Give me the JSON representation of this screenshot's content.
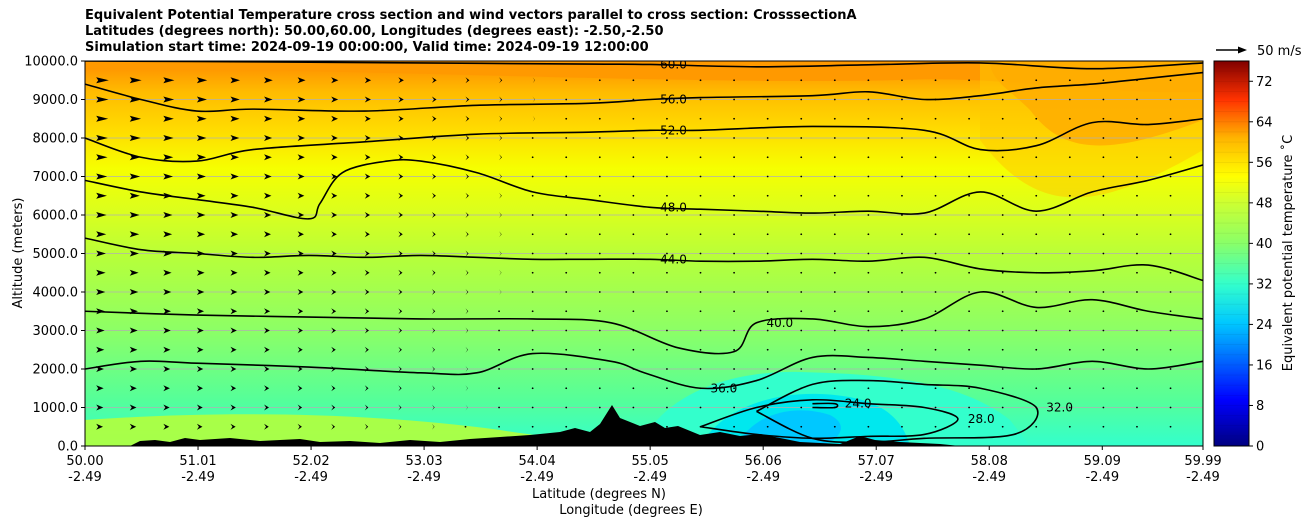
{
  "chart_data": {
    "type": "filled-contour",
    "title_lines": [
      "Equivalent Potential Temperature cross section and wind vectors parallel to cross section: CrosssectionA",
      "Latitudes (degrees north): 50.00,60.00, Longitudes (degrees east): -2.50,-2.50",
      "Simulation start time: 2024-09-19 00:00:00, Valid time: 2024-09-19 12:00:00"
    ],
    "ylabel": "Altitude (meters)",
    "xlabel_lines": [
      "Latitude (degrees N)",
      "Longitude (degrees E)"
    ],
    "ylim": [
      0,
      10000
    ],
    "yticks": [
      0,
      1000,
      2000,
      3000,
      4000,
      5000,
      6000,
      7000,
      8000,
      9000,
      10000
    ],
    "ytick_labels": [
      "0.0",
      "1000.0",
      "2000.0",
      "3000.0",
      "4000.0",
      "5000.0",
      "6000.0",
      "7000.0",
      "8000.0",
      "9000.0",
      "10000.0"
    ],
    "xlim": [
      50.0,
      59.99
    ],
    "xticks": [
      {
        "lat": "50.00",
        "lon": "-2.49"
      },
      {
        "lat": "51.01",
        "lon": "-2.49"
      },
      {
        "lat": "52.02",
        "lon": "-2.49"
      },
      {
        "lat": "53.03",
        "lon": "-2.49"
      },
      {
        "lat": "54.04",
        "lon": "-2.49"
      },
      {
        "lat": "55.05",
        "lon": "-2.49"
      },
      {
        "lat": "56.06",
        "lon": "-2.49"
      },
      {
        "lat": "57.07",
        "lon": "-2.49"
      },
      {
        "lat": "58.08",
        "lon": "-2.49"
      },
      {
        "lat": "59.09",
        "lon": "-2.49"
      },
      {
        "lat": "59.99",
        "lon": "-2.49"
      }
    ],
    "colorbar": {
      "label": "Equivalent potential temperature ˚C",
      "range": [
        0,
        76
      ],
      "ticks": [
        "0",
        "8",
        "16",
        "24",
        "32",
        "40",
        "48",
        "56",
        "64",
        "72"
      ]
    },
    "quiver_key": "50 m/s",
    "grid": "horizontal",
    "contour_lines": [
      {
        "level": 60,
        "label": "60.0",
        "x": [
          50.0,
          51.5,
          53.0,
          54.5,
          55.05,
          56.0,
          57.0,
          58.0,
          59.0,
          59.99
        ],
        "y": [
          10000,
          9980,
          9950,
          9920,
          9910,
          9850,
          9900,
          9950,
          9800,
          9950
        ]
      },
      {
        "level": 56,
        "label": "56.0",
        "x": [
          50.0,
          50.5,
          51.0,
          51.5,
          52.5,
          53.5,
          54.5,
          55.05,
          55.5,
          56.5,
          57.0,
          57.5,
          58.0,
          58.5,
          59.0,
          59.5,
          59.99
        ],
        "y": [
          9400,
          9000,
          8700,
          8750,
          8700,
          8850,
          8900,
          9000,
          9050,
          9100,
          9200,
          9000,
          9100,
          9300,
          9400,
          9550,
          9700
        ]
      },
      {
        "level": 52,
        "label": "52.0",
        "x": [
          50.0,
          50.5,
          51.0,
          51.5,
          52.5,
          53.5,
          54.5,
          55.05,
          55.5,
          56.5,
          57.5,
          58.0,
          58.5,
          59.0,
          59.5,
          59.99
        ],
        "y": [
          8000,
          7500,
          7400,
          7700,
          7900,
          8100,
          8150,
          8200,
          8200,
          8300,
          8200,
          7700,
          7800,
          8400,
          8350,
          8500
        ]
      },
      {
        "level": 48,
        "label": "48.0",
        "x": [
          50.0,
          50.5,
          51.0,
          51.5,
          52.0,
          52.1,
          52.3,
          52.7,
          53.0,
          53.5,
          54.0,
          54.5,
          55.05,
          55.5,
          56.0,
          56.5,
          57.0,
          57.5,
          58.0,
          58.5,
          59.0,
          59.5,
          59.99
        ],
        "y": [
          6900,
          6600,
          6400,
          6200,
          5900,
          6300,
          7100,
          7400,
          7400,
          7100,
          6600,
          6400,
          6200,
          6150,
          6100,
          6050,
          6100,
          6050,
          6600,
          6100,
          6600,
          6900,
          7300
        ]
      },
      {
        "level": 44,
        "label": "44.0",
        "x": [
          50.0,
          50.5,
          51.0,
          51.5,
          52.0,
          52.5,
          53.0,
          53.5,
          54.0,
          54.5,
          55.05,
          55.5,
          56.0,
          56.5,
          57.0,
          57.5,
          58.0,
          58.5,
          59.0,
          59.5,
          59.99
        ],
        "y": [
          5400,
          5100,
          5000,
          4900,
          4950,
          4900,
          4950,
          4900,
          4850,
          4850,
          4850,
          4800,
          4800,
          4850,
          4800,
          4900,
          4600,
          4500,
          4550,
          4700,
          4300
        ]
      },
      {
        "level": 40,
        "label": "40.0",
        "x": [
          50.0,
          51.0,
          52.0,
          53.0,
          54.0,
          54.7,
          55.3,
          55.8,
          56.0,
          56.5,
          57.0,
          57.5,
          58.0,
          58.5,
          59.0,
          59.5,
          59.99
        ],
        "y": [
          3500,
          3400,
          3350,
          3300,
          3300,
          3200,
          2550,
          2450,
          3200,
          3300,
          3100,
          3300,
          4000,
          3600,
          3800,
          3500,
          3300
        ]
      },
      {
        "level": 36,
        "label": "36.0",
        "x": [
          50.0,
          50.5,
          51.0,
          52.0,
          53.0,
          53.5,
          54.0,
          54.7,
          55.0,
          55.5,
          56.0,
          56.5,
          57.0,
          57.5,
          58.0,
          58.5,
          59.0,
          59.5,
          59.99
        ],
        "y": [
          2000,
          2200,
          2150,
          2050,
          1900,
          1900,
          2400,
          2200,
          1900,
          1500,
          1700,
          2300,
          2300,
          2200,
          2100,
          2000,
          2200,
          2000,
          2200
        ]
      },
      {
        "level": 32,
        "label": "32.0",
        "x": [
          56.0,
          56.5,
          57.0,
          57.5,
          58.0,
          58.5,
          58.3,
          57.5,
          57.0,
          56.5,
          56.0
        ],
        "y": [
          900,
          1600,
          1700,
          1600,
          1500,
          1000,
          300,
          200,
          100,
          200,
          900
        ]
      },
      {
        "level": 28,
        "label": "28.0",
        "x": [
          55.5,
          56.0,
          56.5,
          57.0,
          57.5,
          57.8,
          57.5,
          57.0,
          56.5,
          56.0,
          55.5
        ],
        "y": [
          500,
          1000,
          1200,
          1100,
          1000,
          700,
          300,
          250,
          200,
          300,
          500
        ]
      },
      {
        "level": 24,
        "label": "24.0",
        "x": [
          56.5,
          56.7,
          56.7,
          56.5
        ],
        "y": [
          1000,
          1000,
          1100,
          1100
        ]
      }
    ]
  }
}
